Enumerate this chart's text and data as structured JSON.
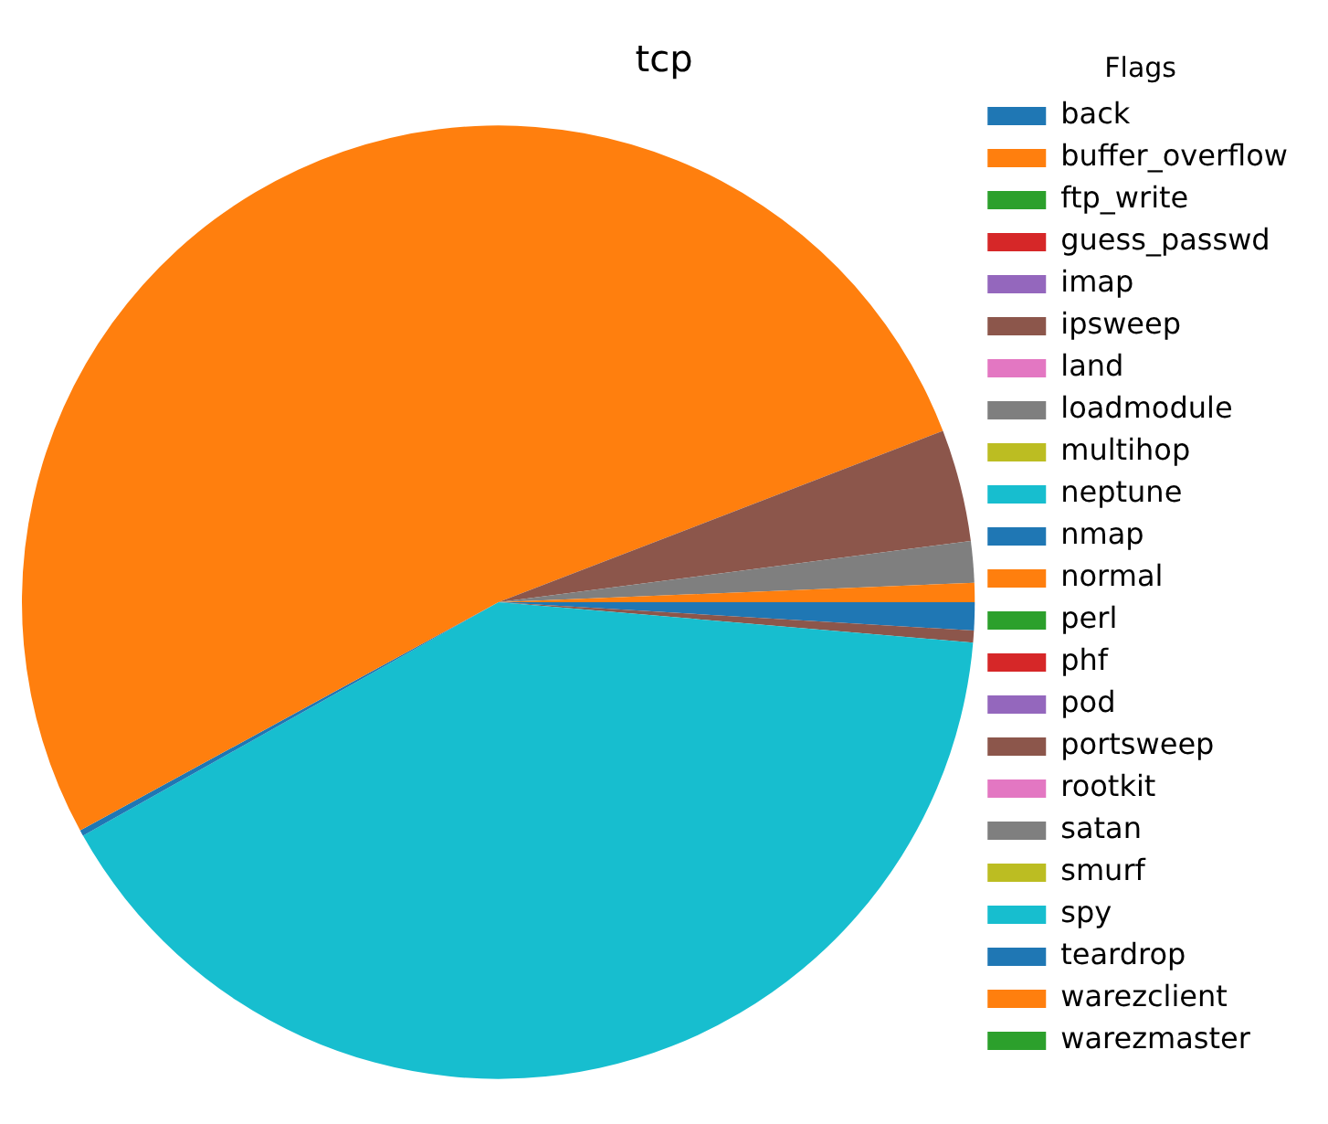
{
  "chart_data": {
    "type": "pie",
    "title": "tcp",
    "legend_title": "Flags",
    "legend": "right",
    "categories": [
      "back",
      "buffer_overflow",
      "ftp_write",
      "guess_passwd",
      "imap",
      "ipsweep",
      "land",
      "loadmodule",
      "multihop",
      "neptune",
      "nmap",
      "normal",
      "perl",
      "phf",
      "pod",
      "portsweep",
      "rootkit",
      "satan",
      "smurf",
      "spy",
      "teardrop",
      "warezclient",
      "warezmaster"
    ],
    "values": [
      0.95,
      0,
      0,
      0,
      0,
      0.4,
      0,
      0,
      0,
      40.5,
      0.2,
      52.1,
      0,
      0,
      0,
      3.8,
      0,
      1.4,
      0,
      0,
      0,
      0.65,
      0
    ],
    "colors": [
      "#1f77b4",
      "#ff7f0e",
      "#2ca02c",
      "#d62728",
      "#9467bd",
      "#8c564b",
      "#e377c2",
      "#7f7f7f",
      "#bcbd22",
      "#17becf",
      "#1f77b4",
      "#ff7f0e",
      "#2ca02c",
      "#d62728",
      "#9467bd",
      "#8c564b",
      "#e377c2",
      "#7f7f7f",
      "#bcbd22",
      "#17becf",
      "#1f77b4",
      "#ff7f0e",
      "#2ca02c"
    ]
  }
}
